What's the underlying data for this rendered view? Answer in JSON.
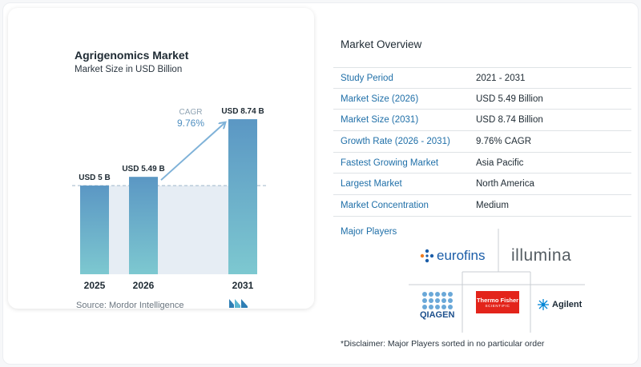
{
  "chart_title": "Agrigenomics Market",
  "chart_subtitle": "Market Size in USD Billion",
  "source": "Source:  Mordor Intelligence",
  "chart_data": {
    "type": "bar",
    "categories": [
      "2025",
      "2026",
      "2031"
    ],
    "values": [
      5.0,
      5.49,
      8.74
    ],
    "data_labels": [
      "USD 5 B",
      "USD 5.49 B",
      "USD 8.74 B"
    ],
    "cagr_label": "CAGR",
    "cagr_value": "9.76%",
    "ylim": [
      0,
      9.6
    ],
    "colors": {
      "bar_top": "#5b97c4",
      "bar_bottom": "#7dc8d0",
      "arrow": "#7fb2d8",
      "band": "#e6edf4"
    }
  },
  "overview": {
    "title": "Market Overview",
    "rows": [
      {
        "label": "Study Period",
        "value": "2021 - 2031"
      },
      {
        "label": "Market Size (2026)",
        "value": "USD 5.49 Billion"
      },
      {
        "label": "Market Size (2031)",
        "value": "USD 8.74 Billion"
      },
      {
        "label": "Growth Rate (2026 - 2031)",
        "value": "9.76% CAGR"
      },
      {
        "label": "Fastest Growing Market",
        "value": "Asia Pacific"
      },
      {
        "label": "Largest Market",
        "value": "North America"
      },
      {
        "label": "Market Concentration",
        "value": "Medium"
      }
    ]
  },
  "players": {
    "label": "Major Players",
    "logos": {
      "eurofins": "eurofins",
      "illumina": "illumina",
      "qiagen": "QIAGEN",
      "thermo_line1": "Thermo Fisher",
      "thermo_line2": "SCIENTIFIC",
      "agilent": "Agilent"
    }
  },
  "disclaimer": "*Disclaimer: Major Players sorted in no particular order"
}
